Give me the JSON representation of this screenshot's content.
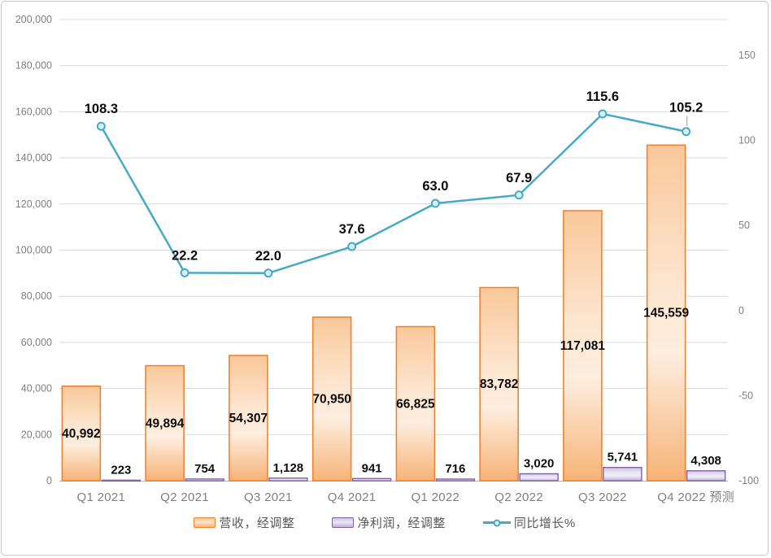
{
  "chart_data": {
    "type": "combo",
    "title": "",
    "categories": [
      "Q1 2021",
      "Q2 2021",
      "Q3 2021",
      "Q4 2021",
      "Q1 2022",
      "Q2 2022",
      "Q3 2022",
      "Q4 2022 预测"
    ],
    "series": [
      {
        "name": "营收，经调整",
        "type": "bar",
        "axis": "left",
        "values": [
          40992,
          49894,
          54307,
          70950,
          66825,
          83782,
          117081,
          145559
        ],
        "labels": [
          "40,992",
          "49,894",
          "54,307",
          "70,950",
          "66,825",
          "83,782",
          "117,081",
          "145,559"
        ],
        "label_placement": "inside-center",
        "border_color": "#ee8434",
        "fill_stops": [
          "#fac89a",
          "#fde6d0",
          "#fdeedf",
          "#f7b377"
        ]
      },
      {
        "name": "净利润，经调整",
        "type": "bar",
        "axis": "left",
        "values": [
          223,
          754,
          1128,
          941,
          716,
          3020,
          5741,
          4308
        ],
        "labels": [
          "223",
          "754",
          "1,128",
          "941",
          "716",
          "3,020",
          "5,741",
          "4,308"
        ],
        "label_placement": "outside-top",
        "border_color": "#8064a2",
        "fill_stops": [
          "#cfc6e2",
          "#ebe8f4",
          "#efedf7",
          "#c0b1d6"
        ]
      },
      {
        "name": "同比增长%",
        "type": "line",
        "axis": "right",
        "values": [
          108.3,
          22.2,
          22.0,
          37.6,
          63.0,
          67.9,
          115.6,
          105.2
        ],
        "labels": [
          "108.3",
          "22.2",
          "22.0",
          "37.6",
          "63.0",
          "67.9",
          "115.6",
          "105.2"
        ],
        "line_color": "#47a9c8",
        "marker_fill": "#d9eef6",
        "leader_point_index": 7
      }
    ],
    "left_axis": {
      "min": 0,
      "max": 200000,
      "step": 20000,
      "ticks": [
        {
          "v": 0,
          "t": "0"
        },
        {
          "v": 20000,
          "t": "20,000"
        },
        {
          "v": 40000,
          "t": "40,000"
        },
        {
          "v": 60000,
          "t": "60,000"
        },
        {
          "v": 80000,
          "t": "80,000"
        },
        {
          "v": 100000,
          "t": "100,000"
        },
        {
          "v": 120000,
          "t": "120,000"
        },
        {
          "v": 140000,
          "t": "140,000"
        },
        {
          "v": 160000,
          "t": "160,000"
        },
        {
          "v": 180000,
          "t": "180,000"
        },
        {
          "v": 200000,
          "t": "200,000"
        }
      ]
    },
    "right_axis": {
      "min": -100,
      "labeled_max": 150,
      "step": 50,
      "units_per_50px_note": "axis extends above 150 to plot top (~170)",
      "ticks": [
        {
          "v": -100,
          "t": "-100"
        },
        {
          "v": -50,
          "t": "-50"
        },
        {
          "v": 0,
          "t": "0"
        },
        {
          "v": 50,
          "t": "50"
        },
        {
          "v": 100,
          "t": "100"
        },
        {
          "v": 150,
          "t": "150"
        }
      ]
    },
    "legend_position": "bottom",
    "grid": true,
    "colors": {
      "background": "#ffffff",
      "frame_border": "#c6c6c6",
      "gridline": "#d9d9d9",
      "axis_line": "#bfbfbf",
      "tick_text": "#808080",
      "category_text": "#7f7f7f",
      "data_label": "#0d0d0d",
      "legend_text": "#595959",
      "leader_line": "#a6a6a6"
    }
  }
}
